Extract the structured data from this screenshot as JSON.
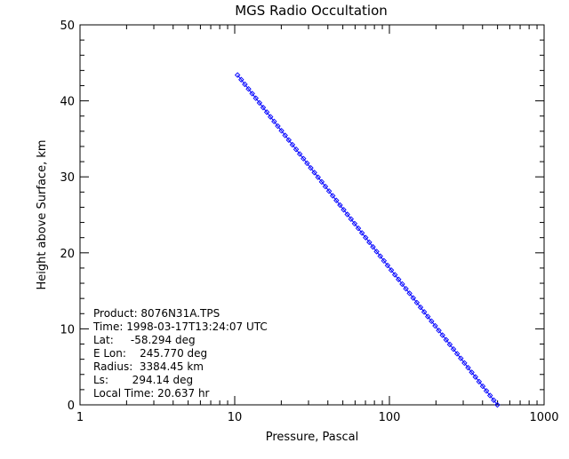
{
  "chart_data": {
    "type": "scatter",
    "title": "MGS Radio Occultation",
    "xlabel": "Pressure, Pascal",
    "ylabel": "Height above Surface, km",
    "xscale": "log",
    "xlim": [
      1,
      1000
    ],
    "ylim": [
      0,
      50
    ],
    "xticks": [
      "1",
      "10",
      "100",
      "1000"
    ],
    "yticks": [
      "0",
      "10",
      "20",
      "30",
      "40",
      "50"
    ],
    "grid": false,
    "line_color": "#0000ff",
    "marker": "diamond",
    "series": [
      {
        "x": [
          498.8,
          10.43
        ],
        "y": [
          0.0,
          43.4
        ],
        "points": 72
      }
    ],
    "annotations": [
      "Product: 8076N31A.TPS",
      "Time: 1998-03-17T13:24:07 UTC",
      "Lat:     -58.294 deg",
      "E Lon:    245.770 deg",
      "Radius:  3384.45 km",
      "Ls:       294.14 deg",
      "Local Time: 20.637 hr"
    ]
  }
}
